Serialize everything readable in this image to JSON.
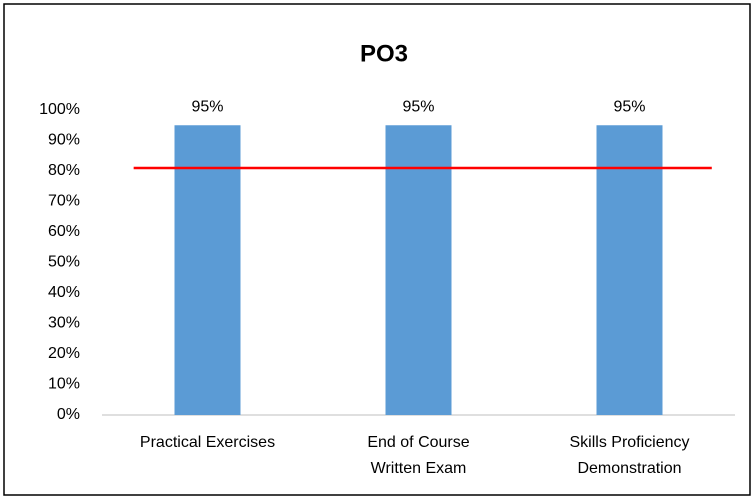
{
  "chart_data": {
    "type": "bar",
    "title": "PO3",
    "categories": [
      [
        "Practical Exercises"
      ],
      [
        "End of Course",
        "Written Exam"
      ],
      [
        "Skills Proficiency",
        "Demonstration"
      ]
    ],
    "values": [
      95,
      95,
      95
    ],
    "value_labels": [
      "95%",
      "95%",
      "95%"
    ],
    "color": "#5b9bd5",
    "ylim": [
      0,
      100
    ],
    "yticks": [
      {
        "value": 0,
        "label": "0%"
      },
      {
        "value": 10,
        "label": "10%"
      },
      {
        "value": 20,
        "label": "20%"
      },
      {
        "value": 30,
        "label": "30%"
      },
      {
        "value": 40,
        "label": "40%"
      },
      {
        "value": 50,
        "label": "50%"
      },
      {
        "value": 60,
        "label": "60%"
      },
      {
        "value": 70,
        "label": "70%"
      },
      {
        "value": 80,
        "label": "80%"
      },
      {
        "value": 90,
        "label": "90%"
      },
      {
        "value": 100,
        "label": "100%"
      }
    ],
    "grid": false,
    "reference_line": {
      "value": 81,
      "color": "#ff0000"
    }
  }
}
